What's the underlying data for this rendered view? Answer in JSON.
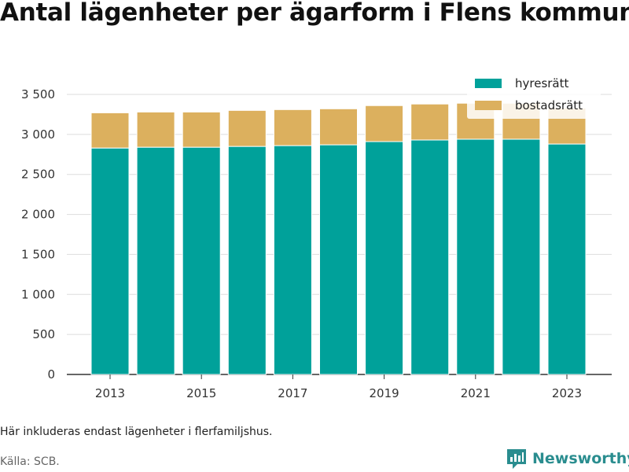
{
  "title": "Antal lägenheter per ägarform i Flens kommun",
  "note": "Här inkluderas endast lägenheter i flerfamiljshus.",
  "source": "Källa: SCB.",
  "brand": {
    "name": "Newsworthy",
    "icon": "newsworthy-logo-icon"
  },
  "colors": {
    "hyresratt": "#00a19a",
    "bostadsratt": "#dcb05e",
    "grid": "#dddddd",
    "brand": "#2a8d8f"
  },
  "chart_data": {
    "type": "bar",
    "stacked": true,
    "title": "Antal lägenheter per ägarform i Flens kommun",
    "xlabel": "",
    "ylabel": "",
    "categories": [
      "2013",
      "2014",
      "2015",
      "2016",
      "2017",
      "2018",
      "2019",
      "2020",
      "2021",
      "2022",
      "2023"
    ],
    "x_tick_labels": [
      "2013",
      "2015",
      "2017",
      "2019",
      "2021",
      "2023"
    ],
    "y_ticks": [
      0,
      500,
      1000,
      1500,
      2000,
      2500,
      3000,
      3500
    ],
    "y_tick_labels": [
      "0",
      "500",
      "1 000",
      "1 500",
      "2 000",
      "2 500",
      "3 000",
      "3 500"
    ],
    "ylim": [
      0,
      3500
    ],
    "grid": true,
    "legend_position": "top-right",
    "series": [
      {
        "name": "hyresrätt",
        "values": [
          2830,
          2840,
          2840,
          2850,
          2860,
          2870,
          2910,
          2930,
          2940,
          2940,
          2880
        ]
      },
      {
        "name": "bostadsrätt",
        "values": [
          440,
          440,
          440,
          450,
          450,
          450,
          450,
          450,
          450,
          450,
          450
        ]
      }
    ]
  }
}
